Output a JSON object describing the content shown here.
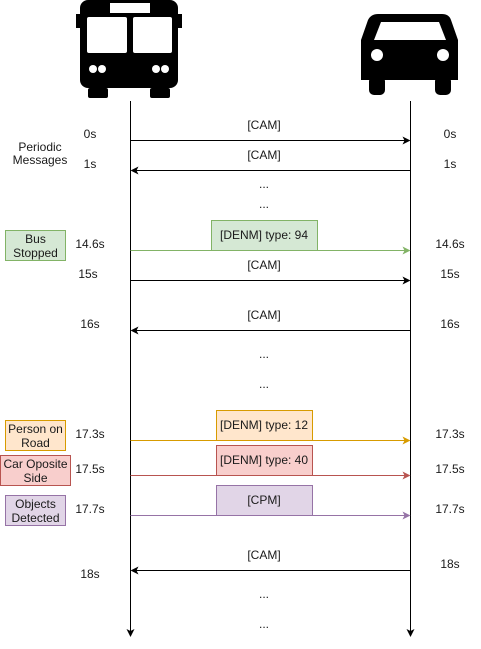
{
  "actors": {
    "left": "bus-icon",
    "right": "car-icon"
  },
  "side_notes": {
    "periodic": "Periodic\nMessages",
    "bus_stopped": "Bus\nStopped",
    "person_on_road": "Person on\nRoad",
    "car_opposite_side": "Car Oposite\nSide",
    "objects_detected": "Objects\nDetected"
  },
  "colors": {
    "black": "#000000",
    "green_fill": "#d5e8d4",
    "green_stroke": "#82b366",
    "orange_fill": "#ffe6cc",
    "orange_stroke": "#d79b00",
    "red_fill": "#f8cecc",
    "red_stroke": "#b85450",
    "purple_fill": "#e1d5e7",
    "purple_stroke": "#9673a6"
  },
  "messages": [
    {
      "label": "[CAM]",
      "dir": "to-car",
      "t_left": "0s",
      "t_right": "0s",
      "color": "#000000"
    },
    {
      "label": "[CAM]",
      "dir": "to-bus",
      "t_left": "1s",
      "t_right": "1s",
      "color": "#000000"
    },
    {
      "label": "[DENM] type: 94",
      "dir": "to-car",
      "t_left": "14.6s",
      "t_right": "14.6s",
      "color": "#82b366"
    },
    {
      "label": "[CAM]",
      "dir": "to-car",
      "t_left": "15s",
      "t_right": "15s",
      "color": "#000000"
    },
    {
      "label": "[CAM]",
      "dir": "to-bus",
      "t_left": "16s",
      "t_right": "16s",
      "color": "#000000"
    },
    {
      "label": "[DENM] type: 12",
      "dir": "to-car",
      "t_left": "17.3s",
      "t_right": "17.3s",
      "color": "#d79b00"
    },
    {
      "label": "[DENM] type: 40",
      "dir": "to-car",
      "t_left": "17.5s",
      "t_right": "17.5s",
      "color": "#b85450"
    },
    {
      "label": "[CPM]",
      "dir": "to-car",
      "t_left": "17.7s",
      "t_right": "17.7s",
      "color": "#9673a6"
    },
    {
      "label": "[CAM]",
      "dir": "to-bus",
      "t_left": "18s",
      "t_right": "18s",
      "color": "#000000"
    }
  ],
  "ellipsis": "..."
}
